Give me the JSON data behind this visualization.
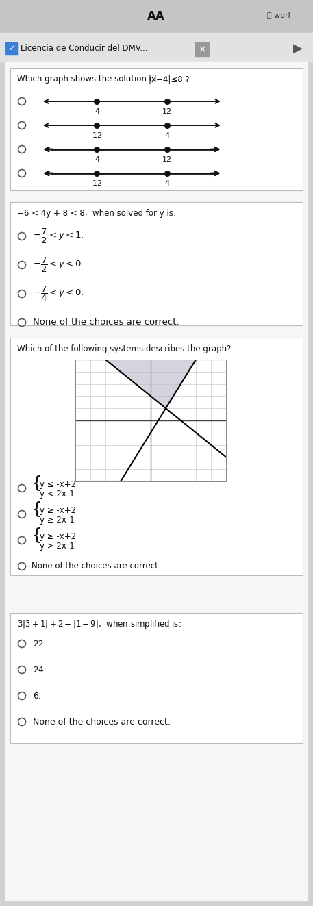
{
  "bg_color": "#d0d0d0",
  "page_bg": "#f5f5f5",
  "header_bar_color": "#c8c8c8",
  "tab_bar_color": "#dcdcdc",
  "box_bg": "#ffffff",
  "box_edge": "#bbbbbb",
  "q1_text": "Which graph shows the solution of |x−4|≤8 ?",
  "q1_lines": [
    {
      "left_lbl": "-4",
      "right_lbl": "12",
      "arrow_left": true,
      "arrow_right": true,
      "bold": false
    },
    {
      "left_lbl": "-12",
      "right_lbl": "4",
      "arrow_left": true,
      "arrow_right": true,
      "bold": false
    },
    {
      "left_lbl": "-4",
      "right_lbl": "12",
      "arrow_left": true,
      "arrow_right": true,
      "bold": true
    },
    {
      "left_lbl": "-12",
      "right_lbl": "4",
      "arrow_left": true,
      "arrow_right": true,
      "bold": true
    }
  ],
  "q2_text": "−6 < 4y + 8 < 8, when solved for y is:",
  "q2_opts": [
    "\\u22127/2 < y < 1.",
    "\\u22127/2 < y < 0.",
    "\\u22127/4 < y < 0.",
    "None of the choices are correct."
  ],
  "q3_text": "Which of the following systems describes the graph?",
  "q3_opts_line1": [
    "y ≤ -x+2",
    "y ≥ -x+2",
    "y ≥ -x+2",
    "None of the choices are correct."
  ],
  "q3_opts_line2": [
    "y < 2x-1",
    "y ≥ 2x-1",
    "y > 2x-1",
    ""
  ],
  "q4_text": "3|3+1|+2−|1−9|, when simplified is:",
  "q4_opts": [
    "22.",
    "24.",
    "6.",
    "None of the choices are correct."
  ]
}
